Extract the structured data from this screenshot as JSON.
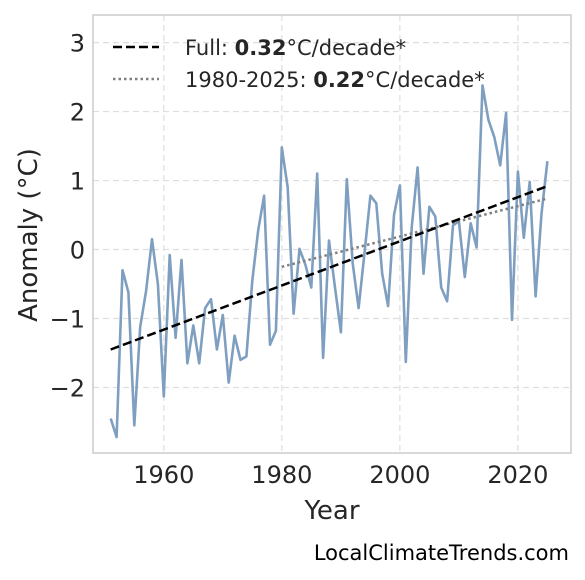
{
  "chart_data": {
    "type": "line",
    "xlabel": "Year",
    "ylabel": "Anomaly (°C)",
    "xlim": [
      1948,
      2029
    ],
    "ylim": [
      -2.95,
      3.4
    ],
    "xticks": [
      1960,
      1980,
      2000,
      2020
    ],
    "xtick_labels": [
      "1960",
      "1980",
      "2000",
      "2020"
    ],
    "yticks": [
      -2,
      -1,
      0,
      1,
      2,
      3
    ],
    "ytick_labels": [
      "−2",
      "−1",
      "0",
      "1",
      "2",
      "3"
    ],
    "grid": true,
    "legend_position": "top-left",
    "series": [
      {
        "kind": "anomaly",
        "color": "#7f9fc1",
        "x": [
          1951,
          1952,
          1953,
          1954,
          1955,
          1956,
          1957,
          1958,
          1959,
          1960,
          1961,
          1962,
          1963,
          1964,
          1965,
          1966,
          1967,
          1968,
          1969,
          1970,
          1971,
          1972,
          1973,
          1974,
          1975,
          1976,
          1977,
          1978,
          1979,
          1980,
          1981,
          1982,
          1983,
          1984,
          1985,
          1986,
          1987,
          1988,
          1989,
          1990,
          1991,
          1992,
          1993,
          1994,
          1995,
          1996,
          1997,
          1998,
          1999,
          2000,
          2001,
          2002,
          2003,
          2004,
          2005,
          2006,
          2007,
          2008,
          2009,
          2010,
          2011,
          2012,
          2013,
          2014,
          2015,
          2016,
          2017,
          2018,
          2019,
          2020,
          2021,
          2022,
          2023,
          2024,
          2025
        ],
        "y": [
          -2.45,
          -2.72,
          -0.3,
          -0.62,
          -2.55,
          -1.12,
          -0.6,
          0.15,
          -0.5,
          -2.13,
          -0.08,
          -1.28,
          -0.15,
          -1.65,
          -1.1,
          -1.65,
          -0.85,
          -0.72,
          -1.45,
          -0.95,
          -1.93,
          -1.25,
          -1.6,
          -1.55,
          -0.45,
          0.28,
          0.78,
          -1.38,
          -1.18,
          1.48,
          0.9,
          -0.93,
          0.01,
          -0.22,
          -0.55,
          1.1,
          -1.57,
          0.13,
          -0.55,
          -1.2,
          1.02,
          -0.2,
          -0.85,
          -0.05,
          0.78,
          0.67,
          -0.35,
          -0.82,
          0.5,
          0.93,
          -1.63,
          0.32,
          1.19,
          -0.35,
          0.62,
          0.48,
          -0.55,
          -0.75,
          0.35,
          0.41,
          -0.4,
          0.38,
          0.03,
          2.38,
          1.88,
          1.63,
          1.22,
          1.98,
          -1.02,
          1.13,
          0.17,
          0.98,
          -0.68,
          0.52,
          1.28
        ]
      },
      {
        "kind": "trend-full",
        "color": "#000000",
        "x": [
          1951,
          2025
        ],
        "y": [
          -1.45,
          0.92
        ]
      },
      {
        "kind": "trend-recent",
        "color": "#808080",
        "x": [
          1980,
          2025
        ],
        "y": [
          -0.25,
          0.74
        ]
      }
    ]
  },
  "legend": {
    "full": {
      "prefix": "Full: ",
      "value": "0.32",
      "suffix": "°C/decade*"
    },
    "recent": {
      "prefix": "1980-2025: ",
      "value": "0.22",
      "suffix": "°C/decade*"
    }
  },
  "credit": "LocalClimateTrends.com"
}
